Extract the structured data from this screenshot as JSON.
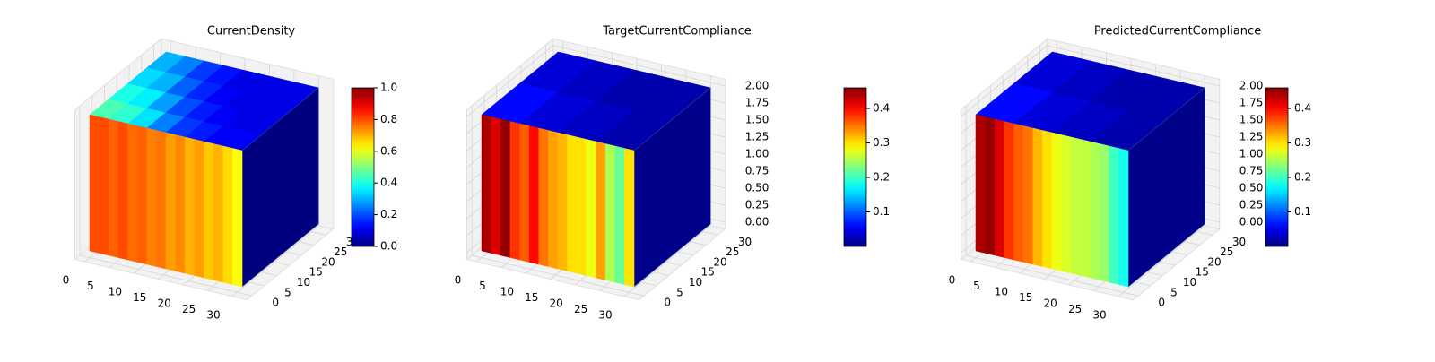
{
  "chart_data": [
    {
      "type": "surface",
      "title": "CurrentDensity",
      "colormap": "jet",
      "xlim": [
        0,
        31
      ],
      "ylim": [
        0,
        31
      ],
      "zlim": [
        0,
        2
      ],
      "xticks": [
        0,
        5,
        10,
        15,
        20,
        25,
        30
      ],
      "yticks": [
        0,
        5,
        10,
        15,
        20,
        25,
        30
      ],
      "clim": [
        0,
        1
      ],
      "cticks": [
        {
          "value": 0,
          "label": "0.0"
        },
        0.2,
        0.4,
        0.6,
        0.8,
        {
          "value": 1,
          "label": "1.0"
        }
      ],
      "front_values": [
        0.8,
        0.8,
        0.78,
        0.8,
        0.77,
        0.78,
        0.75,
        0.76,
        0.72,
        0.74,
        0.7,
        0.72,
        0.68,
        0.7,
        0.66,
        0.62
      ],
      "top_values": [
        [
          0.45,
          0.42,
          0.35,
          0.25,
          0.18,
          0.15,
          0.12,
          0.12
        ],
        [
          0.4,
          0.36,
          0.28,
          0.2,
          0.15,
          0.12,
          0.1,
          0.1
        ],
        [
          0.34,
          0.3,
          0.22,
          0.16,
          0.12,
          0.1,
          0.1,
          0.1
        ],
        [
          0.3,
          0.25,
          0.18,
          0.14,
          0.1,
          0.1,
          0.1,
          0.1
        ]
      ],
      "side_value": 0.0
    },
    {
      "type": "surface",
      "title": "TargetCurrentCompliance",
      "colormap": "jet",
      "xlim": [
        0,
        31
      ],
      "ylim": [
        0,
        31
      ],
      "zlim": [
        0,
        2
      ],
      "xticks": [
        0,
        5,
        10,
        15,
        20,
        25,
        30
      ],
      "yticks": [
        0,
        5,
        10,
        15,
        20,
        25,
        30
      ],
      "zticks": [
        {
          "value": 0,
          "label": "0.00"
        },
        0.25,
        {
          "value": 0.5,
          "label": "0.50"
        },
        0.75,
        {
          "value": 1,
          "label": "1.00"
        },
        1.25,
        {
          "value": 1.5,
          "label": "1.50"
        },
        1.75,
        {
          "value": 2,
          "label": "2.00"
        }
      ],
      "clim": [
        0,
        0.46
      ],
      "cticks": [
        0.1,
        0.2,
        0.3,
        0.4
      ],
      "front_values": [
        0.44,
        0.42,
        0.45,
        0.38,
        0.36,
        0.4,
        0.35,
        0.33,
        0.32,
        0.3,
        0.3,
        0.28,
        0.33,
        0.25,
        0.22,
        0.3
      ],
      "top_values": [
        [
          0.06,
          0.04,
          0.03,
          0.02
        ],
        [
          0.04,
          0.03,
          0.02,
          0.02
        ]
      ],
      "side_value": 0.005
    },
    {
      "type": "surface",
      "title": "PredictedCurrentCompliance",
      "colormap": "jet",
      "xlim": [
        0,
        31
      ],
      "ylim": [
        0,
        31
      ],
      "zlim": [
        0,
        2
      ],
      "xticks": [
        0,
        5,
        10,
        15,
        20,
        25,
        30
      ],
      "yticks": [
        0,
        5,
        10,
        15,
        20,
        25,
        30
      ],
      "zticks": [
        {
          "value": 0,
          "label": "0.00"
        },
        0.25,
        {
          "value": 0.5,
          "label": "0.50"
        },
        0.75,
        {
          "value": 1,
          "label": "1.00"
        },
        1.25,
        {
          "value": 1.5,
          "label": "1.50"
        },
        1.75,
        {
          "value": 2,
          "label": "2.00"
        }
      ],
      "clim": [
        0,
        0.46
      ],
      "cticks": [
        0.1,
        0.2,
        0.3,
        0.4
      ],
      "front_values": [
        0.44,
        0.45,
        0.42,
        0.38,
        0.36,
        0.35,
        0.32,
        0.3,
        0.28,
        0.27,
        0.26,
        0.26,
        0.25,
        0.24,
        0.2,
        0.18
      ],
      "top_values": [
        [
          0.06,
          0.04,
          0.03,
          0.02
        ],
        [
          0.04,
          0.03,
          0.02,
          0.02
        ]
      ],
      "side_value": 0.005
    }
  ]
}
